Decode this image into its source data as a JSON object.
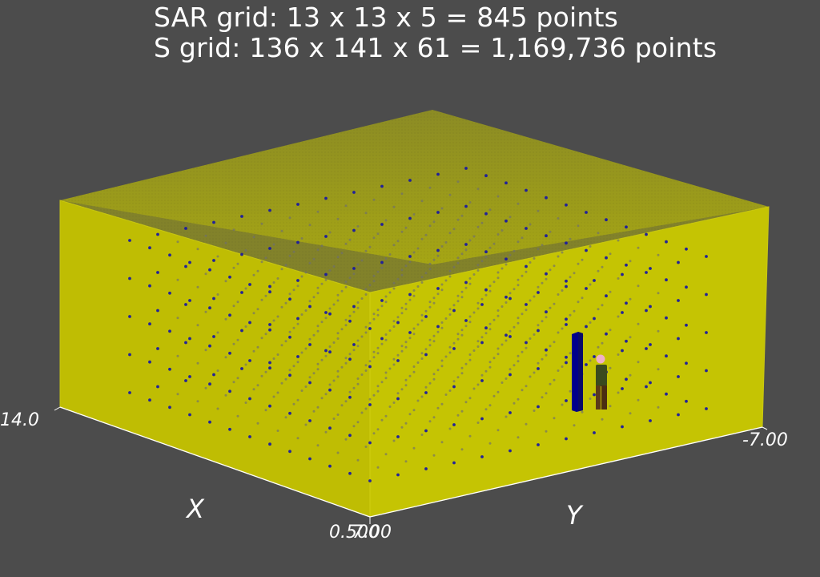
{
  "title": {
    "line1": "SAR grid: 13 x 13 x 5 = 845 points",
    "line2": "S grid: 136 x 141 x 61 = 1,169,736 points"
  },
  "axes": {
    "x_label": "X",
    "y_label": "Y",
    "x_tick_max": "14.0",
    "x_tick_min": "0.500",
    "y_tick_min": "-7.00",
    "y_tick_max": "7.00"
  },
  "colors": {
    "background": "#4c4c4c",
    "s_grid": "#c8c800",
    "sar_points": "#1a1aa0",
    "antenna": "#00008b",
    "person_shirt": "#3a4a1e",
    "person_pants": "#5a3a1a",
    "person_head": "#f0b0c8"
  },
  "scene": {
    "sar_grid": [
      13,
      13,
      5
    ],
    "s_grid": [
      136,
      141,
      61
    ]
  }
}
